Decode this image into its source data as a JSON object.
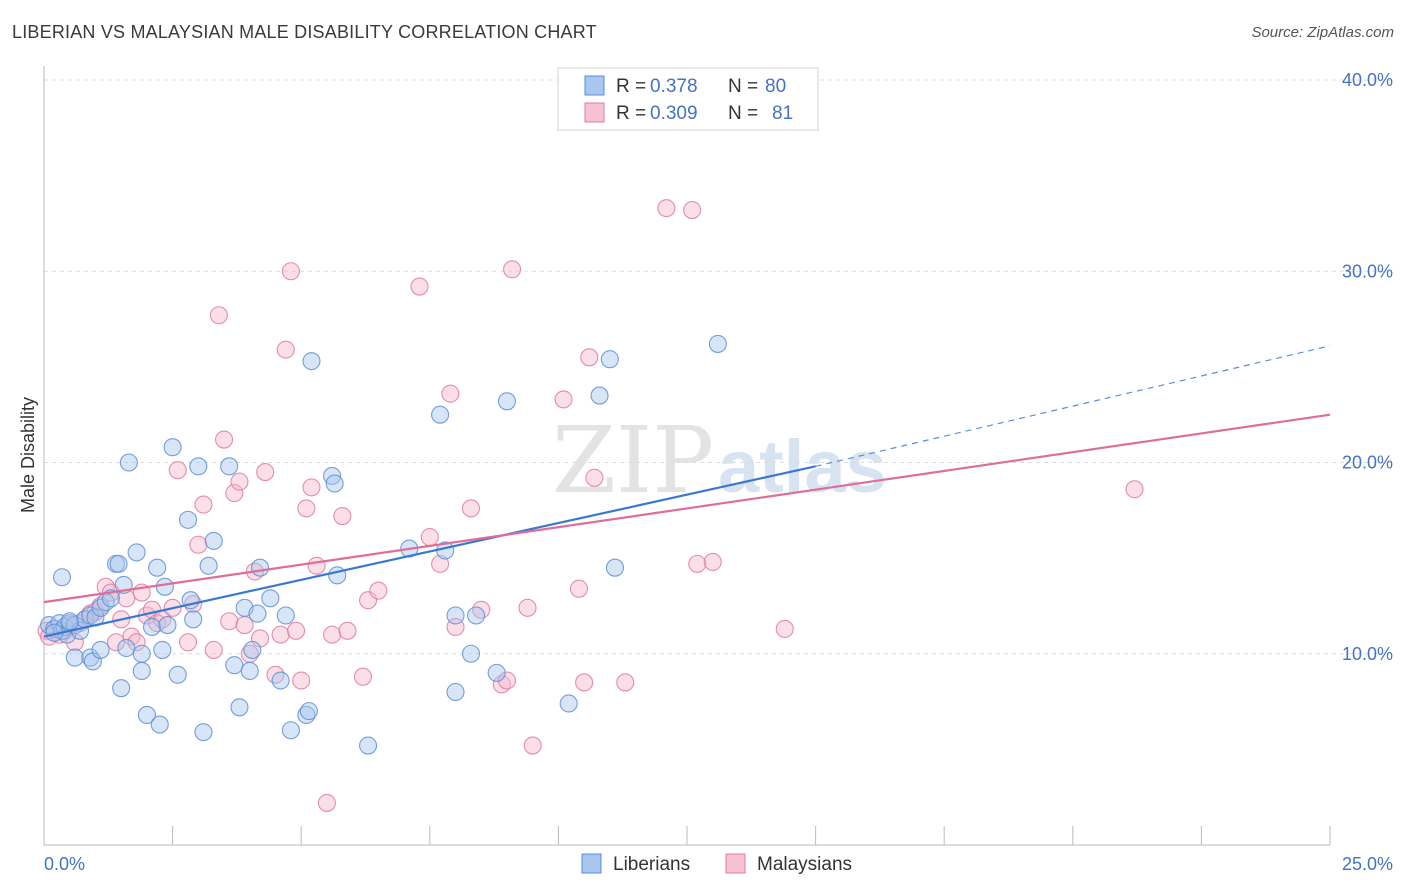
{
  "title": "LIBERIAN VS MALAYSIAN MALE DISABILITY CORRELATION CHART",
  "source": "Source: ZipAtlas.com",
  "watermark": {
    "zip": "ZIP",
    "atlas": "atlas"
  },
  "colors": {
    "liberians": "#5b8fd6",
    "liberians_fill": "#a9c6ee",
    "malaysians": "#e07aa0",
    "malaysians_fill": "#f4b9cc",
    "tick": "#4472c4"
  },
  "chart_data": {
    "type": "scatter",
    "title": "LIBERIAN VS MALAYSIAN MALE DISABILITY CORRELATION CHART",
    "xlabel": "",
    "ylabel": "Male Disability",
    "xlim": [
      0,
      25
    ],
    "ylim": [
      0,
      40
    ],
    "x_tick_labels": [
      "0.0%",
      "25.0%"
    ],
    "y_ticks": [
      10,
      20,
      30,
      40
    ],
    "y_tick_labels": [
      "10.0%",
      "20.0%",
      "30.0%",
      "40.0%"
    ],
    "grid": true,
    "legend_placement": "top-center",
    "stats": [
      {
        "r_label": "R =",
        "r": "0.378",
        "n_label": "N =",
        "n": "80"
      },
      {
        "r_label": "R =",
        "r": "0.309",
        "n_label": "N =",
        "n": "81"
      }
    ],
    "series": [
      {
        "name": "Liberians",
        "trend": {
          "x0": 0,
          "y0": 10.9,
          "x1": 15,
          "y1": 19.8,
          "dash_to_x": 25,
          "dash_to_y": 26.1
        },
        "points": [
          [
            0.1,
            11.5
          ],
          [
            0.2,
            11.3
          ],
          [
            0.3,
            11.6
          ],
          [
            0.35,
            11.2
          ],
          [
            0.4,
            11.4
          ],
          [
            0.45,
            11.0
          ],
          [
            0.5,
            11.6
          ],
          [
            0.6,
            11.5
          ],
          [
            0.7,
            11.2
          ],
          [
            0.8,
            11.8
          ],
          [
            0.9,
            12.0
          ],
          [
            1.0,
            11.9
          ],
          [
            1.1,
            12.4
          ],
          [
            1.2,
            12.7
          ],
          [
            1.3,
            12.9
          ],
          [
            0.35,
            14.0
          ],
          [
            0.6,
            9.8
          ],
          [
            0.9,
            9.8
          ],
          [
            0.95,
            9.6
          ],
          [
            1.1,
            10.2
          ],
          [
            1.4,
            14.7
          ],
          [
            1.45,
            14.7
          ],
          [
            1.5,
            8.2
          ],
          [
            1.55,
            13.6
          ],
          [
            1.6,
            10.3
          ],
          [
            1.65,
            20.0
          ],
          [
            1.8,
            15.3
          ],
          [
            1.9,
            10.0
          ],
          [
            1.9,
            9.1
          ],
          [
            2.0,
            6.8
          ],
          [
            2.1,
            11.4
          ],
          [
            2.2,
            14.5
          ],
          [
            2.25,
            6.3
          ],
          [
            2.3,
            10.2
          ],
          [
            2.35,
            13.5
          ],
          [
            2.4,
            11.5
          ],
          [
            2.5,
            20.8
          ],
          [
            2.6,
            8.9
          ],
          [
            2.8,
            17.0
          ],
          [
            2.85,
            12.8
          ],
          [
            2.9,
            11.8
          ],
          [
            3.0,
            19.8
          ],
          [
            3.1,
            5.9
          ],
          [
            3.2,
            14.6
          ],
          [
            3.3,
            15.9
          ],
          [
            3.6,
            19.8
          ],
          [
            3.7,
            9.4
          ],
          [
            3.8,
            7.2
          ],
          [
            3.9,
            12.4
          ],
          [
            4.0,
            9.1
          ],
          [
            4.05,
            10.2
          ],
          [
            4.15,
            12.1
          ],
          [
            4.2,
            14.5
          ],
          [
            4.4,
            12.9
          ],
          [
            4.6,
            8.6
          ],
          [
            4.7,
            12.0
          ],
          [
            4.8,
            6.0
          ],
          [
            5.1,
            6.8
          ],
          [
            5.15,
            7.0
          ],
          [
            5.2,
            25.3
          ],
          [
            5.6,
            19.3
          ],
          [
            5.65,
            18.9
          ],
          [
            5.7,
            14.1
          ],
          [
            6.3,
            5.2
          ],
          [
            7.1,
            15.5
          ],
          [
            7.7,
            22.5
          ],
          [
            7.8,
            15.4
          ],
          [
            8.0,
            12.0
          ],
          [
            8.0,
            8.0
          ],
          [
            8.3,
            10.0
          ],
          [
            8.4,
            12.0
          ],
          [
            8.8,
            9.0
          ],
          [
            9.0,
            23.2
          ],
          [
            10.2,
            7.4
          ],
          [
            10.8,
            23.5
          ],
          [
            11.0,
            25.4
          ],
          [
            11.1,
            14.5
          ],
          [
            13.1,
            26.2
          ],
          [
            0.2,
            11.1
          ],
          [
            0.5,
            11.7
          ]
        ]
      },
      {
        "name": "Malaysians",
        "trend": {
          "x0": 0,
          "y0": 12.7,
          "x1": 25,
          "y1": 22.5
        },
        "points": [
          [
            0.05,
            11.2
          ],
          [
            0.1,
            10.9
          ],
          [
            0.2,
            11.3
          ],
          [
            0.3,
            11.0
          ],
          [
            0.4,
            11.2
          ],
          [
            0.5,
            11.5
          ],
          [
            0.6,
            10.6
          ],
          [
            0.7,
            11.6
          ],
          [
            0.8,
            11.8
          ],
          [
            0.9,
            12.1
          ],
          [
            1.0,
            12.2
          ],
          [
            1.1,
            12.5
          ],
          [
            1.2,
            13.5
          ],
          [
            1.3,
            13.2
          ],
          [
            1.4,
            10.6
          ],
          [
            1.5,
            11.8
          ],
          [
            1.6,
            12.9
          ],
          [
            1.7,
            10.9
          ],
          [
            1.8,
            10.6
          ],
          [
            1.9,
            13.2
          ],
          [
            2.0,
            12.0
          ],
          [
            2.1,
            12.3
          ],
          [
            2.2,
            11.6
          ],
          [
            2.3,
            11.8
          ],
          [
            2.5,
            12.4
          ],
          [
            2.6,
            19.6
          ],
          [
            2.8,
            10.6
          ],
          [
            2.9,
            12.6
          ],
          [
            3.0,
            15.7
          ],
          [
            3.1,
            17.8
          ],
          [
            3.3,
            10.2
          ],
          [
            3.4,
            27.7
          ],
          [
            3.5,
            21.2
          ],
          [
            3.6,
            11.7
          ],
          [
            3.7,
            18.4
          ],
          [
            3.8,
            19.0
          ],
          [
            3.9,
            11.5
          ],
          [
            4.0,
            10.0
          ],
          [
            4.1,
            14.3
          ],
          [
            4.2,
            10.8
          ],
          [
            4.3,
            19.5
          ],
          [
            4.5,
            8.9
          ],
          [
            4.6,
            11.0
          ],
          [
            4.7,
            25.9
          ],
          [
            4.8,
            30.0
          ],
          [
            4.9,
            11.2
          ],
          [
            5.0,
            8.6
          ],
          [
            5.1,
            17.6
          ],
          [
            5.2,
            18.7
          ],
          [
            5.3,
            14.6
          ],
          [
            5.5,
            2.2
          ],
          [
            5.6,
            11.0
          ],
          [
            5.8,
            17.2
          ],
          [
            5.9,
            11.2
          ],
          [
            6.2,
            8.8
          ],
          [
            6.3,
            12.8
          ],
          [
            6.5,
            13.3
          ],
          [
            7.3,
            29.2
          ],
          [
            7.5,
            16.1
          ],
          [
            7.7,
            14.7
          ],
          [
            7.9,
            23.6
          ],
          [
            8.0,
            11.4
          ],
          [
            8.3,
            17.6
          ],
          [
            8.5,
            12.3
          ],
          [
            8.9,
            8.4
          ],
          [
            9.0,
            8.6
          ],
          [
            9.1,
            30.1
          ],
          [
            9.4,
            12.4
          ],
          [
            9.5,
            5.2
          ],
          [
            10.1,
            23.3
          ],
          [
            10.4,
            13.4
          ],
          [
            10.5,
            8.5
          ],
          [
            10.6,
            25.5
          ],
          [
            10.7,
            19.2
          ],
          [
            11.3,
            8.5
          ],
          [
            12.1,
            33.3
          ],
          [
            12.6,
            33.2
          ],
          [
            12.7,
            14.7
          ],
          [
            13.0,
            14.8
          ],
          [
            14.4,
            11.3
          ],
          [
            21.2,
            18.6
          ]
        ]
      }
    ]
  }
}
